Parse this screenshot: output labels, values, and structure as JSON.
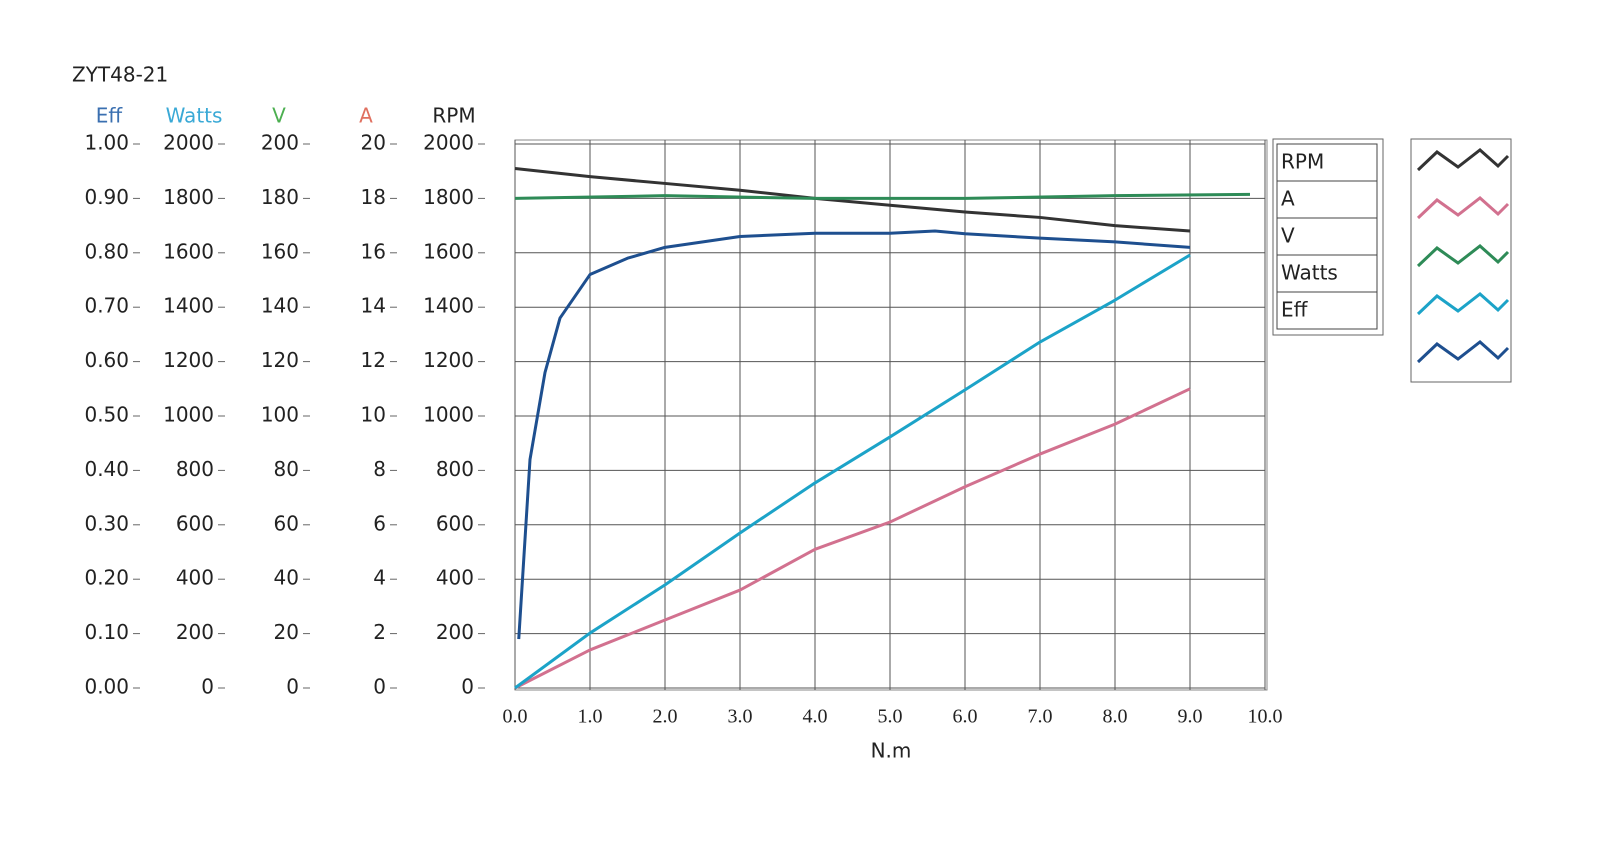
{
  "chart_data": {
    "type": "line",
    "title": "ZYT48-21",
    "x_label": "N.m",
    "grid": true,
    "xlim": [
      0,
      10
    ],
    "xticks": [
      {
        "value": 0,
        "label": "0.0"
      },
      {
        "value": 1,
        "label": "1.0"
      },
      {
        "value": 2,
        "label": "2.0"
      },
      {
        "value": 3,
        "label": "3.0"
      },
      {
        "value": 4,
        "label": "4.0"
      },
      {
        "value": 5,
        "label": "5.0"
      },
      {
        "value": 6,
        "label": "6.0"
      },
      {
        "value": 7,
        "label": "7.0"
      },
      {
        "value": 8,
        "label": "8.0"
      },
      {
        "value": 9,
        "label": "9.0"
      },
      {
        "value": 10,
        "label": "10.0"
      }
    ],
    "y_axes": [
      {
        "title": "Eff",
        "color": "#3a6fb0",
        "lim": [
          0,
          1
        ],
        "ticks": [
          {
            "value": 0,
            "label": "0.00"
          },
          {
            "value": 0.1,
            "label": "0.10"
          },
          {
            "value": 0.2,
            "label": "0.20"
          },
          {
            "value": 0.3,
            "label": "0.30"
          },
          {
            "value": 0.4,
            "label": "0.40"
          },
          {
            "value": 0.5,
            "label": "0.50"
          },
          {
            "value": 0.6,
            "label": "0.60"
          },
          {
            "value": 0.7,
            "label": "0.70"
          },
          {
            "value": 0.8,
            "label": "0.80"
          },
          {
            "value": 0.9,
            "label": "0.90"
          },
          {
            "value": 1,
            "label": "1.00"
          }
        ]
      },
      {
        "title": "Watts",
        "color": "#3aa9d6",
        "lim": [
          0,
          2000
        ],
        "ticks": [
          0,
          200,
          400,
          600,
          800,
          1000,
          1200,
          1400,
          1600,
          1800,
          2000
        ]
      },
      {
        "title": "V",
        "color": "#4caf50",
        "lim": [
          0,
          200
        ],
        "ticks": [
          0,
          20,
          40,
          60,
          80,
          100,
          120,
          140,
          160,
          180,
          200
        ]
      },
      {
        "title": "A",
        "color": "#e07060",
        "lim": [
          0,
          20
        ],
        "ticks": [
          0,
          2,
          4,
          6,
          8,
          10,
          12,
          14,
          16,
          18,
          20
        ]
      },
      {
        "title": "RPM",
        "color": "#222222",
        "lim": [
          0,
          2000
        ],
        "ticks": [
          0,
          200,
          400,
          600,
          800,
          1000,
          1200,
          1400,
          1600,
          1800,
          2000
        ]
      }
    ],
    "series": [
      {
        "name": "RPM",
        "color": "#333333",
        "x": [
          0,
          1,
          2,
          3,
          4,
          5,
          6,
          7,
          8,
          9
        ],
        "values": [
          1910,
          1880,
          1855,
          1830,
          1800,
          1775,
          1750,
          1730,
          1700,
          1680
        ]
      },
      {
        "name": "A",
        "color": "#d2718f",
        "x": [
          0,
          1,
          2,
          3,
          4,
          5,
          6,
          7,
          8,
          9
        ],
        "values": [
          0,
          1.4,
          2.5,
          3.6,
          5.1,
          6.1,
          7.4,
          8.6,
          9.7,
          11.0
        ]
      },
      {
        "name": "V",
        "color": "#2e8b57",
        "x": [
          0,
          2,
          4,
          6,
          8,
          9.8
        ],
        "values": [
          180,
          181,
          180,
          180,
          181,
          181.5
        ]
      },
      {
        "name": "Watts",
        "color": "#1ca3c8",
        "x": [
          0,
          1,
          2,
          3,
          4,
          5,
          6,
          7,
          8,
          9
        ],
        "values": [
          0,
          202,
          379,
          570,
          754,
          923,
          1096,
          1272,
          1426,
          1592
        ]
      },
      {
        "name": "Eff",
        "color": "#1e4f8f",
        "x": [
          0.05,
          0.2,
          0.4,
          0.6,
          0.8,
          1,
          1.5,
          2,
          3,
          4,
          5,
          5.6,
          6,
          7,
          8,
          9
        ],
        "values": [
          0.09,
          0.42,
          0.58,
          0.68,
          0.72,
          0.76,
          0.79,
          0.81,
          0.83,
          0.836,
          0.836,
          0.84,
          0.835,
          0.827,
          0.82,
          0.81
        ]
      }
    ]
  }
}
